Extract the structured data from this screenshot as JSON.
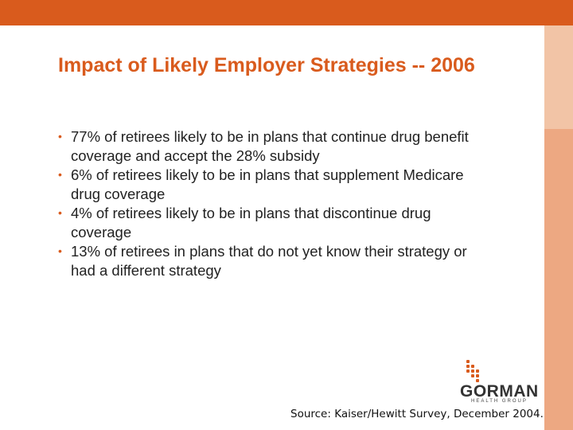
{
  "colors": {
    "accent": "#d95b1d",
    "band_light": "#f2c4a6",
    "band_mid": "#eda882"
  },
  "slide": {
    "title": "Impact of Likely Employer Strategies -- 2006",
    "bullets": [
      {
        "text": "77% of retirees likely to be in plans that continue drug benefit coverage and accept the 28% subsidy"
      },
      {
        "text": "6% of retirees likely to be in plans that supplement Medicare drug coverage"
      },
      {
        "text": "4% of retirees likely to be in plans that discontinue drug coverage"
      },
      {
        "text": "13% of retirees in plans that do not yet know their strategy or had a different strategy"
      }
    ],
    "source": "Source: Kaiser/Hewitt Survey, December 2004."
  },
  "logo": {
    "name": "GORMAN",
    "subtitle": "HEALTH GROUP",
    "icon": "dot-grid-logo-icon"
  }
}
